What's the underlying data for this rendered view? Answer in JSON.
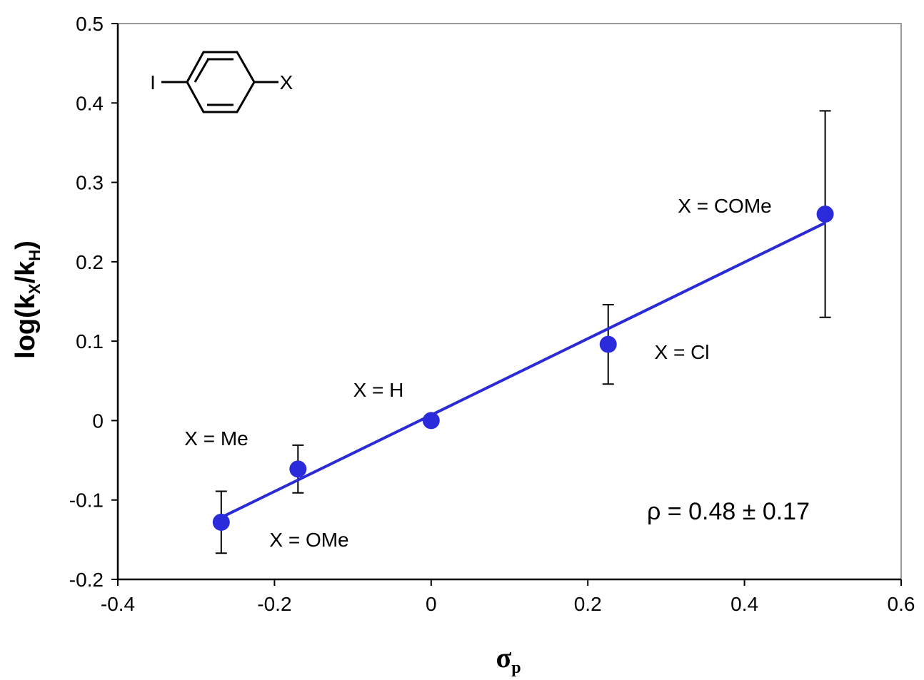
{
  "chart_data": {
    "type": "scatter",
    "xlabel": [
      "σ",
      "p"
    ],
    "ylabel": [
      "log(k",
      "X",
      "/k",
      "H",
      ")"
    ],
    "xlim": [
      -0.4,
      0.6
    ],
    "ylim": [
      -0.2,
      0.5
    ],
    "xticks": [
      -0.4,
      -0.2,
      0,
      0.2,
      0.4,
      0.6
    ],
    "yticks": [
      -0.2,
      -0.1,
      0,
      0.1,
      0.2,
      0.3,
      0.4,
      0.5
    ],
    "series": [
      {
        "color": "#2b2bdc",
        "x": [
          -0.268,
          -0.17,
          0,
          0.226,
          0.503
        ],
        "values": [
          -0.128,
          -0.061,
          0,
          0.096,
          0.26
        ],
        "errors": [
          0.039,
          0.03,
          null,
          0.05,
          0.13
        ]
      },
      {
        "color": "#2b2bd6",
        "x": [
          -0.268,
          0.503
        ],
        "values": [
          -0.122,
          0.249
        ],
        "fit": true
      }
    ],
    "annotations": [
      "X = OMe",
      "X = Me",
      "X = H",
      "X = Cl",
      "X = COMe",
      "ρ = 0.48 ± 0.17"
    ],
    "structure_labels": [
      "I",
      "X"
    ]
  }
}
